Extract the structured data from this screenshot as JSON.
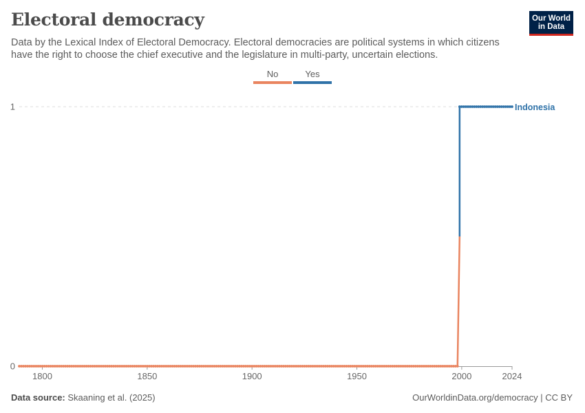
{
  "header": {
    "title": "Electoral democracy",
    "subtitle": "Data by the Lexical Index of Electoral Democracy. Electoral democracies are political systems in which citizens have the right to choose the chief executive and the legislature in multi-party, uncertain elections.",
    "logo_line1": "Our World",
    "logo_line2": "in Data"
  },
  "legend": {
    "no_label": "No",
    "yes_label": "Yes",
    "no_color": "#e9845f",
    "yes_color": "#2f72a8"
  },
  "footer": {
    "source_label": "Data source:",
    "source_text": "Skaaning et al. (2025)",
    "url": "OurWorldinData.org/democracy | CC BY"
  },
  "chart_data": {
    "type": "line",
    "xlim": [
      1789,
      2024
    ],
    "ylim": [
      0,
      1
    ],
    "x_ticks": [
      1800,
      1850,
      1900,
      1950,
      2000,
      2024
    ],
    "y_ticks": [
      0,
      1
    ],
    "grid": "horizontal dashed",
    "legend_placement": "top-center",
    "series": [
      {
        "name": "Indonesia",
        "color_below": "#e9845f",
        "color_above": "#2f72a8",
        "points": [
          [
            1789,
            0
          ],
          [
            1998,
            0
          ],
          [
            1999,
            1
          ],
          [
            2024,
            1
          ]
        ]
      }
    ]
  }
}
